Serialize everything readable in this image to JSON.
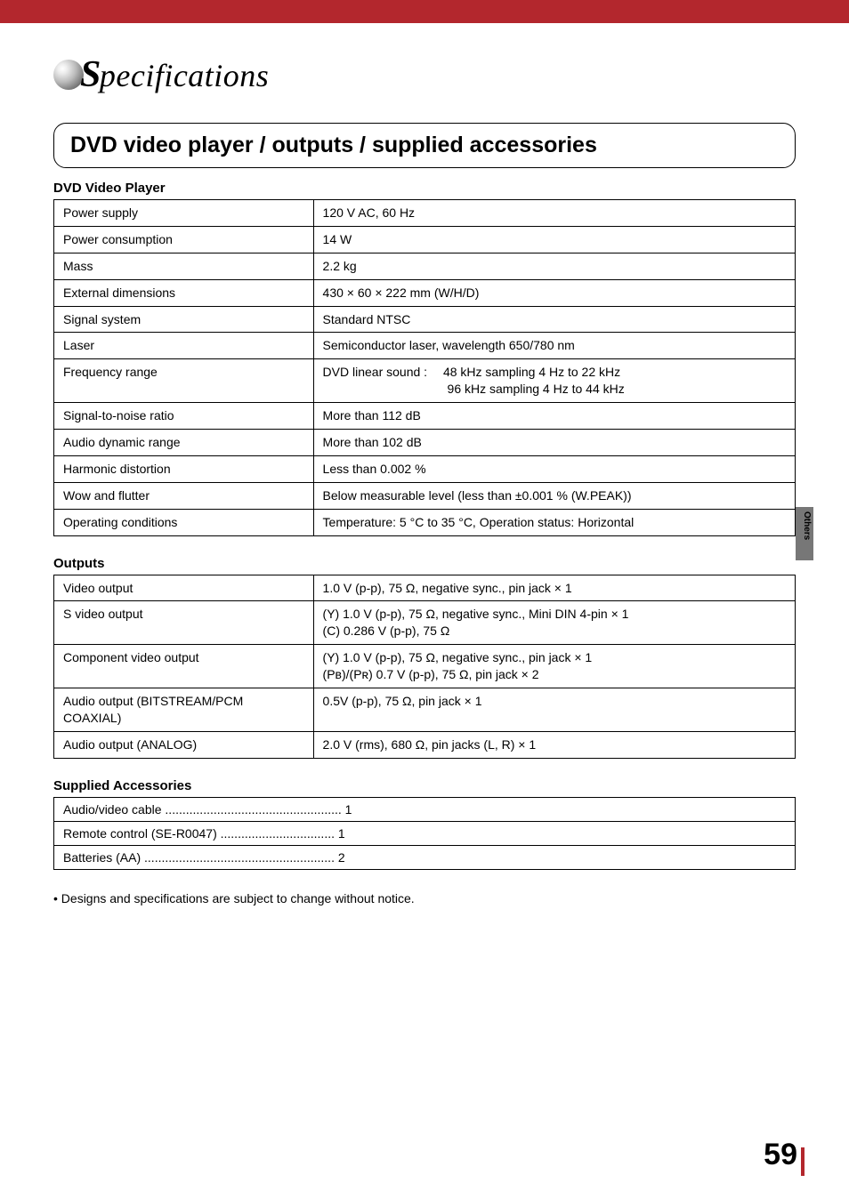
{
  "header": {
    "logo_title_prefix": "S",
    "logo_title_rest": "pecifications"
  },
  "section": {
    "title": "DVD video player / outputs / supplied accessories"
  },
  "dvd_player": {
    "heading": "DVD Video Player",
    "rows": [
      {
        "label": "Power supply",
        "value": "120 V AC, 60 Hz"
      },
      {
        "label": "Power consumption",
        "value": "14 W"
      },
      {
        "label": "Mass",
        "value": "2.2 kg"
      },
      {
        "label": "External dimensions",
        "value": "430 × 60 × 222 mm (W/H/D)"
      },
      {
        "label": "Signal system",
        "value": "Standard NTSC"
      },
      {
        "label": "Laser",
        "value": "Semiconductor laser, wavelength 650/780 nm"
      },
      {
        "label": "Frequency range",
        "value": "DVD linear sound :  48 kHz sampling 4 Hz to 22 kHz\n          96 kHz sampling 4 Hz to 44 kHz"
      },
      {
        "label": "Signal-to-noise ratio",
        "value": "More than 112 dB"
      },
      {
        "label": "Audio dynamic range",
        "value": "More than 102 dB"
      },
      {
        "label": "Harmonic distortion",
        "value": "Less than 0.002 %"
      },
      {
        "label": "Wow and flutter",
        "value": "Below measurable level (less than ±0.001 % (W.PEAK))"
      },
      {
        "label": "Operating conditions",
        "value": "Temperature: 5 °C to 35 °C, Operation status: Horizontal"
      }
    ]
  },
  "outputs": {
    "heading": "Outputs",
    "rows": [
      {
        "label": "Video output",
        "value": "1.0 V (p-p), 75 Ω, negative sync., pin jack × 1"
      },
      {
        "label": "S video output",
        "value": "(Y) 1.0 V (p-p), 75 Ω, negative sync., Mini DIN 4-pin × 1\n(C) 0.286 V (p-p), 75 Ω"
      },
      {
        "label": "Component video output",
        "value": "(Y) 1.0 V (p-p), 75 Ω, negative sync., pin jack × 1\n(Pʙ)/(Pʀ) 0.7 V (p-p), 75 Ω, pin jack × 2"
      },
      {
        "label": "Audio output (BITSTREAM/PCM COAXIAL)",
        "value": "0.5V (p-p), 75 Ω, pin jack × 1"
      },
      {
        "label": "Audio output (ANALOG)",
        "value": "2.0 V (rms), 680 Ω, pin jacks (L, R) × 1"
      }
    ]
  },
  "supplied": {
    "heading": "Supplied Accessories",
    "rows": [
      "Audio/video cable ................................................... 1",
      "Remote control (SE-R0047) ................................. 1",
      "Batteries (AA) ....................................................... 2"
    ]
  },
  "note": "• Designs and specifications are subject to change without notice.",
  "side_tab": "Others",
  "page_number": "59",
  "style": {
    "accent_color": "#b3272d",
    "tab_color": "#777777",
    "body_font_size": 14,
    "title_font_size": 25,
    "logo_font_size": 36,
    "page_number_font_size": 34,
    "table_border_color": "#000000",
    "background_color": "#ffffff"
  }
}
